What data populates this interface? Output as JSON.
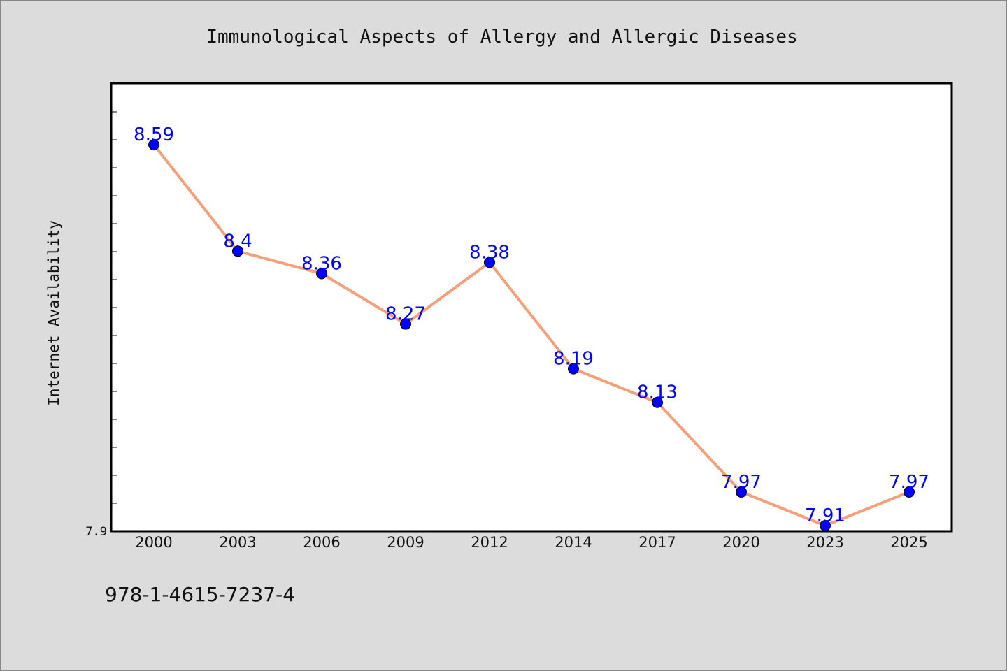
{
  "chart_data": {
    "type": "line",
    "title": "Immunological Aspects of Allergy and Allergic Diseases",
    "xlabel": "",
    "ylabel": "Internet Availability",
    "categories": [
      "2000",
      "2003",
      "2006",
      "2009",
      "2012",
      "2014",
      "2017",
      "2020",
      "2023",
      "2025"
    ],
    "series": [
      {
        "values": [
          8.59,
          8.4,
          8.36,
          8.27,
          8.38,
          8.19,
          8.13,
          7.97,
          7.91,
          7.97
        ]
      }
    ],
    "data_labels": [
      "8.59",
      "8.4",
      "8.36",
      "8.27",
      "8.38",
      "8.19",
      "8.13",
      "7.97",
      "7.91",
      "7.97"
    ],
    "ylim": [
      7.9,
      8.7
    ],
    "y_tick_labels": [
      "7.9"
    ],
    "grid": false,
    "line_color": "#f4a07a",
    "marker_color": "#0000ff",
    "label_color": "#0000ff"
  },
  "footer": {
    "isbn": "978-1-4615-7237-4"
  }
}
